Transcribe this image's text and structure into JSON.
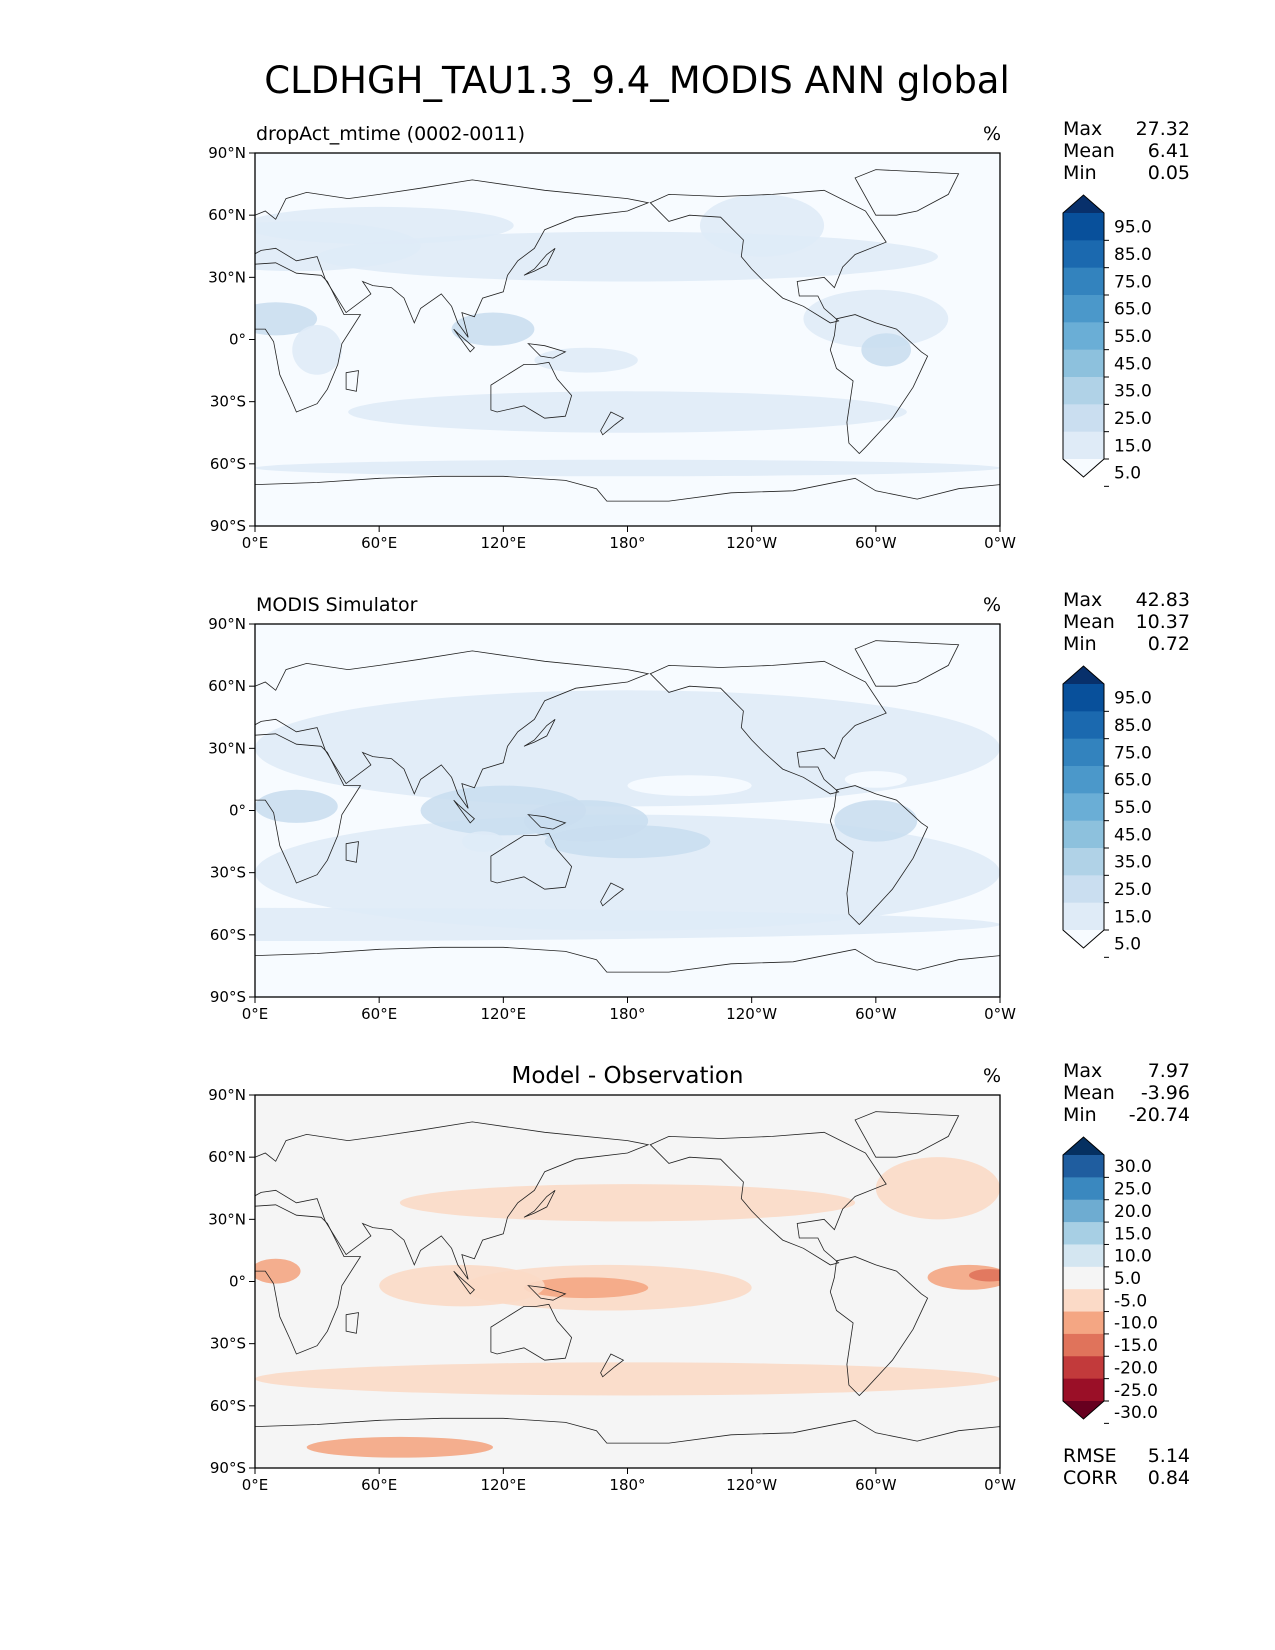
{
  "figure_title": "CLDHGH_TAU1.3_9.4_MODIS ANN global",
  "x_ticks": [
    "0°E",
    "60°E",
    "120°E",
    "180°",
    "120°W",
    "60°W",
    "0°W"
  ],
  "y_ticks": [
    "90°N",
    "60°N",
    "30°N",
    "0°",
    "30°S",
    "60°S",
    "90°S"
  ],
  "panels": [
    {
      "title_left": "dropAct_mtime (0002-0011)",
      "title_center": "",
      "units": "%",
      "stats": [
        {
          "label": "Max",
          "value": "27.32"
        },
        {
          "label": "Mean",
          "value": "6.41"
        },
        {
          "label": "Min",
          "value": "0.05"
        }
      ],
      "colorbar": {
        "labels": [
          "95.0",
          "85.0",
          "75.0",
          "65.0",
          "55.0",
          "45.0",
          "35.0",
          "25.0",
          "15.0",
          "5.0"
        ],
        "colors": [
          "#08306b",
          "#08509b",
          "#1b69af",
          "#3383be",
          "#4b98ca",
          "#6aaed6",
          "#8dc1dd",
          "#b0d2e7",
          "#cadef0",
          "#dfebf7",
          "#f7fbff"
        ]
      }
    },
    {
      "title_left": "MODIS Simulator",
      "title_center": "",
      "units": "%",
      "stats": [
        {
          "label": "Max",
          "value": "42.83"
        },
        {
          "label": "Mean",
          "value": "10.37"
        },
        {
          "label": "Min",
          "value": "0.72"
        }
      ],
      "colorbar": {
        "labels": [
          "95.0",
          "85.0",
          "75.0",
          "65.0",
          "55.0",
          "45.0",
          "35.0",
          "25.0",
          "15.0",
          "5.0"
        ],
        "colors": [
          "#08306b",
          "#08509b",
          "#1b69af",
          "#3383be",
          "#4b98ca",
          "#6aaed6",
          "#8dc1dd",
          "#b0d2e7",
          "#cadef0",
          "#dfebf7",
          "#f7fbff"
        ]
      }
    },
    {
      "title_left": "",
      "title_center": "Model - Observation",
      "units": "%",
      "stats": [
        {
          "label": "Max",
          "value": "7.97"
        },
        {
          "label": "Mean",
          "value": "-3.96"
        },
        {
          "label": "Min",
          "value": "-20.74"
        }
      ],
      "colorbar": {
        "labels": [
          "30.0",
          "25.0",
          "20.0",
          "15.0",
          "10.0",
          "5.0",
          "-5.0",
          "-10.0",
          "-15.0",
          "-20.0",
          "-25.0",
          "-30.0"
        ],
        "colors": [
          "#053061",
          "#1f5d9f",
          "#3a88bf",
          "#6eacd1",
          "#a7cfe4",
          "#d4e6f1",
          "#f5f5f5",
          "#fbdac7",
          "#f4a683",
          "#e0735b",
          "#c23a3b",
          "#9a0f27",
          "#67001f"
        ]
      },
      "extra_stats": [
        {
          "label": "RMSE",
          "value": "5.14"
        },
        {
          "label": "CORR",
          "value": "0.84"
        }
      ]
    }
  ]
}
